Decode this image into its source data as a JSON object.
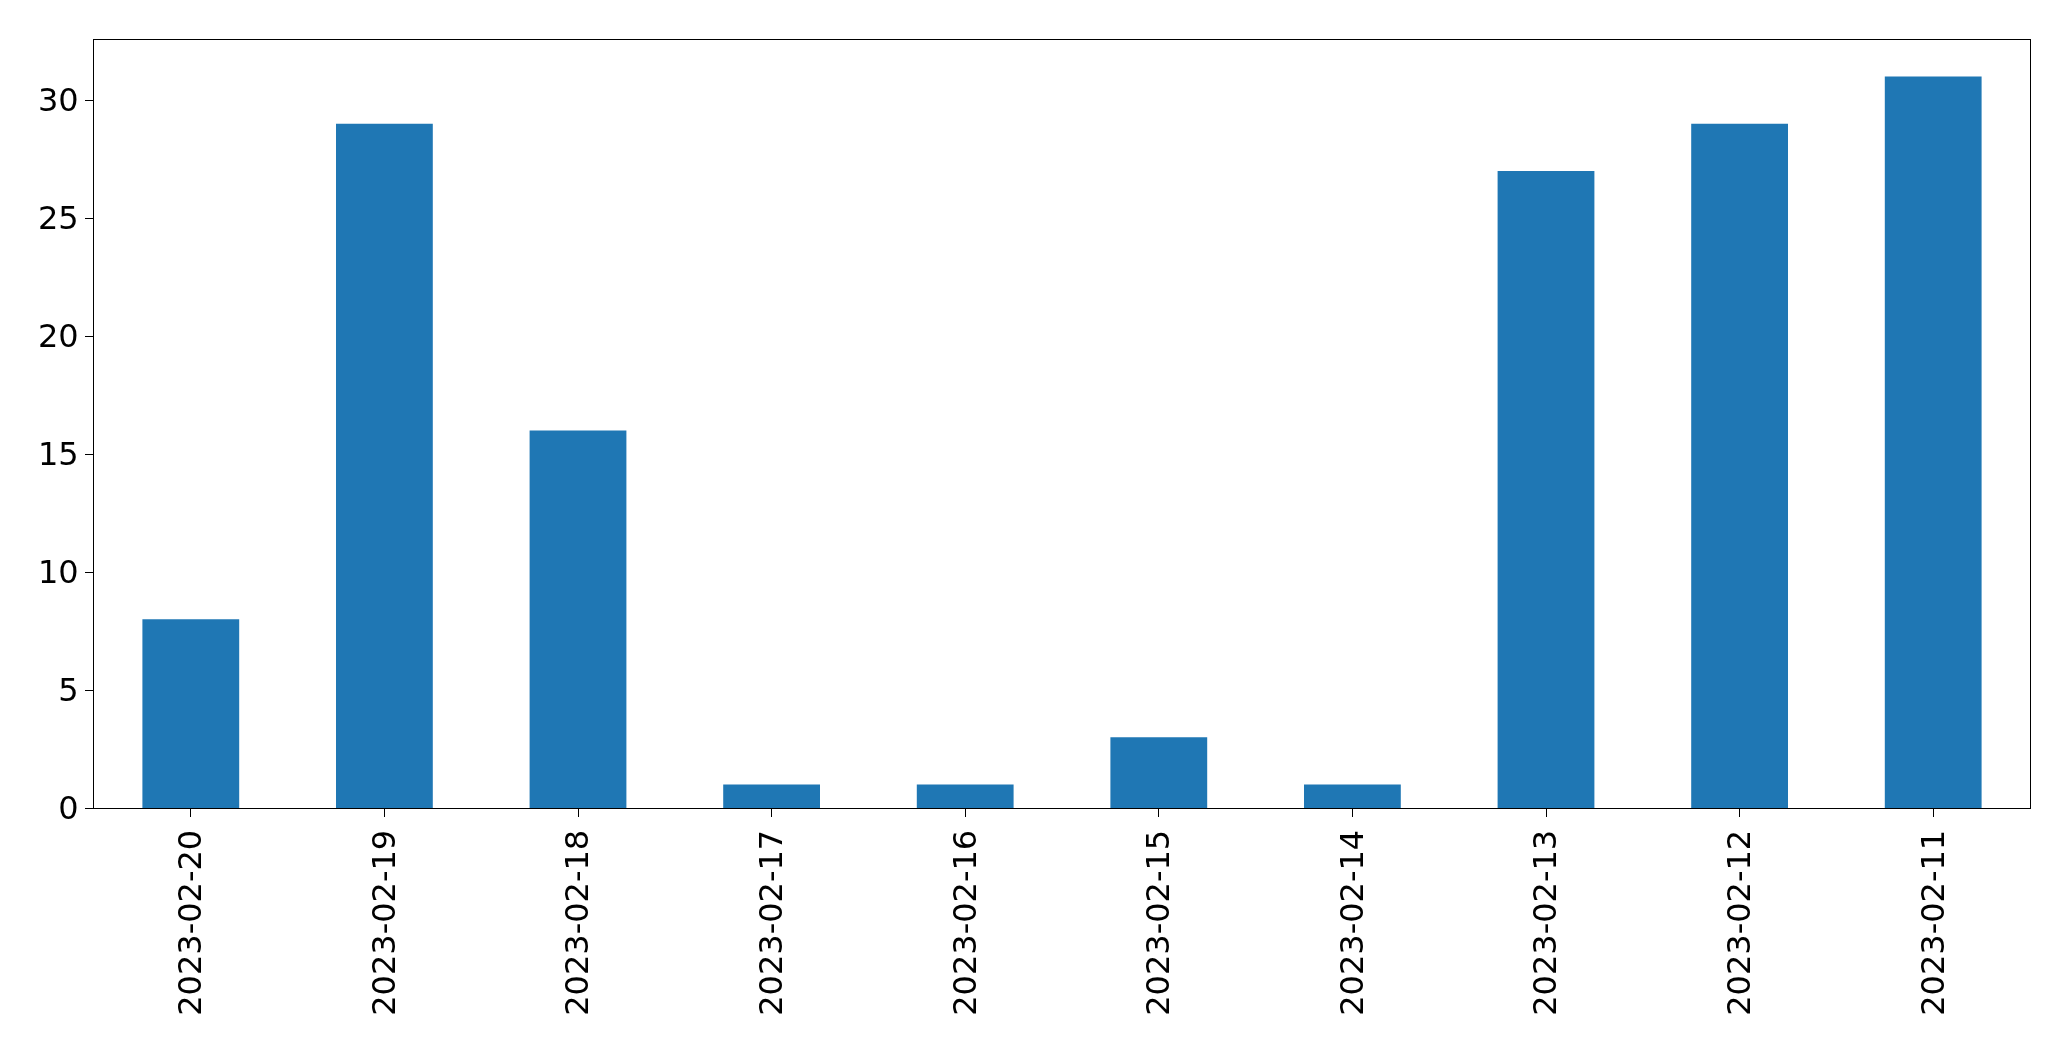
{
  "chart_data": {
    "type": "bar",
    "categories": [
      "2023-02-20",
      "2023-02-19",
      "2023-02-18",
      "2023-02-17",
      "2023-02-16",
      "2023-02-15",
      "2023-02-14",
      "2023-02-13",
      "2023-02-12",
      "2023-02-11"
    ],
    "values": [
      8,
      29,
      16,
      1,
      1,
      3,
      1,
      27,
      29,
      31
    ],
    "color": "#1f77b4",
    "ylim": [
      0,
      32.55
    ],
    "yticks": [
      0,
      5,
      10,
      15,
      20,
      25,
      30
    ],
    "legend": false
  }
}
